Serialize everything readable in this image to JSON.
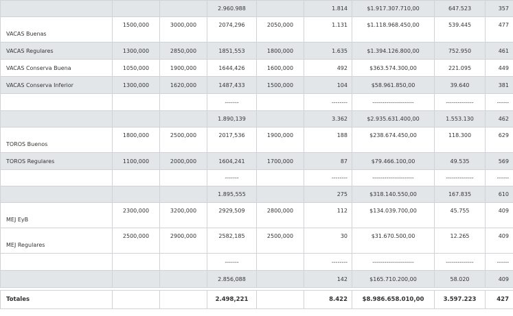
{
  "rows": [
    {
      "style": "shade",
      "h": 24,
      "cells": [
        "",
        "",
        "",
        "2.960.988",
        "",
        "1.814",
        "$1.917.307.710,00",
        "647.523",
        "357"
      ]
    },
    {
      "style": "plain",
      "h": 37,
      "cells": [
        "VACAS Buenas",
        "1500,000",
        "3000,000",
        "2074,296",
        "2050,000",
        "1.131",
        "$1.118.968.450,00",
        "539.445",
        "477"
      ]
    },
    {
      "style": "shade",
      "h": 25,
      "cells": [
        "VACAS Regulares",
        "1300,000",
        "2850,000",
        "1851,553",
        "1800,000",
        "1.635",
        "$1.394.126.800,00",
        "752.950",
        "461"
      ]
    },
    {
      "style": "plain",
      "h": 25,
      "cells": [
        "VACAS Conserva Buena",
        "1050,000",
        "1900,000",
        "1644,426",
        "1600,000",
        "492",
        "$363.574.300,00",
        "221.095",
        "449"
      ]
    },
    {
      "style": "shade",
      "h": 25,
      "cells": [
        "VACAS Conserva Inferior",
        "1300,000",
        "1620,000",
        "1487,433",
        "1500,000",
        "104",
        "$58.961.850,00",
        "39.640",
        "381"
      ]
    },
    {
      "style": "plain",
      "h": 25,
      "cells": [
        "",
        "",
        "",
        "-------",
        "",
        "--------",
        "---------------------",
        "--------------",
        "------"
      ]
    },
    {
      "style": "shade",
      "h": 24,
      "cells": [
        "",
        "",
        "",
        "1.890,139",
        "",
        "3.362",
        "$2.935.631.400,00",
        "1.553.130",
        "462"
      ]
    },
    {
      "style": "plain",
      "h": 37,
      "cells": [
        "TOROS Buenos",
        "1800,000",
        "2500,000",
        "2017,536",
        "1900,000",
        "188",
        "$238.674.450,00",
        "118.300",
        "629"
      ]
    },
    {
      "style": "shade",
      "h": 25,
      "cells": [
        "TOROS Regulares",
        "1100,000",
        "2000,000",
        "1604,241",
        "1700,000",
        "87",
        "$79.466.100,00",
        "49.535",
        "569"
      ]
    },
    {
      "style": "plain",
      "h": 24,
      "cells": [
        "",
        "",
        "",
        "-------",
        "",
        "--------",
        "---------------------",
        "--------------",
        "------"
      ]
    },
    {
      "style": "shade",
      "h": 24,
      "cells": [
        "",
        "",
        "",
        "1.895,555",
        "",
        "275",
        "$318.140.550,00",
        "167.835",
        "610"
      ]
    },
    {
      "style": "plain",
      "h": 37,
      "cells": [
        "MEJ EyB",
        "2300,000",
        "3200,000",
        "2929,509",
        "2800,000",
        "112",
        "$134.039.700,00",
        "45.755",
        "409"
      ]
    },
    {
      "style": "plain",
      "h": 37,
      "cells": [
        "MEJ Regulares",
        "2500,000",
        "2900,000",
        "2582,185",
        "2500,000",
        "30",
        "$31.670.500,00",
        "12.265",
        "409"
      ]
    },
    {
      "style": "plain",
      "h": 25,
      "cells": [
        "",
        "",
        "",
        "-------",
        "",
        "--------",
        "---------------------",
        "--------------",
        "------"
      ]
    },
    {
      "style": "shade",
      "h": 25,
      "cells": [
        "",
        "",
        "",
        "2.856,088",
        "",
        "142",
        "$165.710.200,00",
        "58.020",
        "409"
      ]
    }
  ],
  "totals": [
    "Totales",
    "",
    "",
    "2.498,221",
    "",
    "8.422",
    "$8.986.658.010,00",
    "3.597.223",
    "427"
  ]
}
